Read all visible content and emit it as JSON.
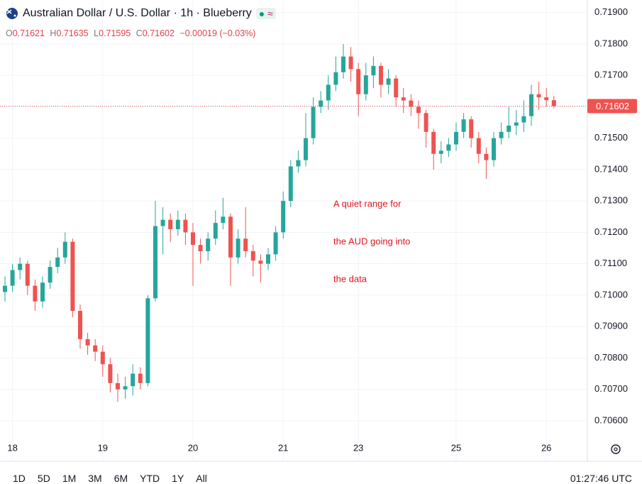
{
  "header": {
    "title": "Australian Dollar / U.S. Dollar · 1h · Blueberry",
    "ohlc_labels": [
      "O",
      "H",
      "L",
      "C"
    ],
    "change": "−0.00019 (−0.03%)"
  },
  "chart_data": {
    "type": "candlestick",
    "categories": [
      null,
      "18",
      null,
      null,
      null,
      null,
      null,
      null,
      null,
      null,
      null,
      null,
      null,
      "19",
      null,
      null,
      null,
      null,
      null,
      null,
      null,
      null,
      null,
      null,
      null,
      "20",
      null,
      null,
      null,
      null,
      null,
      null,
      null,
      null,
      null,
      null,
      null,
      "21",
      null,
      null,
      null,
      null,
      null,
      null,
      null,
      null,
      null,
      "23",
      null,
      null,
      null,
      null,
      null,
      null,
      null,
      null,
      null,
      null,
      null,
      null,
      "25",
      null,
      null,
      null,
      null,
      null,
      null,
      null,
      null,
      null,
      null,
      null,
      "26",
      null
    ],
    "open": [
      0.7101,
      0.7103,
      0.7108,
      0.711,
      0.7103,
      0.7098,
      0.7104,
      0.7109,
      0.7112,
      0.7117,
      0.7095,
      0.7086,
      0.7084,
      0.7082,
      0.7078,
      0.7072,
      0.707,
      0.7071,
      0.7075,
      0.7072,
      0.7099,
      0.7122,
      0.7124,
      0.7121,
      0.7124,
      0.712,
      0.7116,
      0.7114,
      0.7118,
      0.7123,
      0.7125,
      0.7112,
      0.7118,
      0.7114,
      0.7111,
      0.711,
      0.7113,
      0.712,
      0.713,
      0.7141,
      0.7143,
      0.715,
      0.716,
      0.7162,
      0.7167,
      0.7171,
      0.7176,
      0.7172,
      0.7164,
      0.717,
      0.7173,
      0.7167,
      0.7169,
      0.7163,
      0.7162,
      0.716,
      0.7158,
      0.7152,
      0.7145,
      0.7146,
      0.7148,
      0.7152,
      0.7156,
      0.715,
      0.7145,
      0.7143,
      0.715,
      0.7152,
      0.7154,
      0.7155,
      0.7157,
      0.7164,
      0.7163,
      0.71621
    ],
    "high": [
      0.7106,
      0.711,
      0.7112,
      0.7111,
      0.7105,
      0.7106,
      0.7111,
      0.7115,
      0.712,
      0.7118,
      0.7097,
      0.7088,
      0.7086,
      0.7084,
      0.708,
      0.7075,
      0.7074,
      0.7078,
      0.7077,
      0.71,
      0.713,
      0.7128,
      0.7126,
      0.7127,
      0.7126,
      0.7123,
      0.7118,
      0.712,
      0.7127,
      0.7131,
      0.7126,
      0.7121,
      0.7128,
      0.7116,
      0.7113,
      0.7115,
      0.7122,
      0.7133,
      0.7143,
      0.7146,
      0.7158,
      0.7163,
      0.7165,
      0.717,
      0.7176,
      0.718,
      0.7179,
      0.7174,
      0.7174,
      0.7176,
      0.7174,
      0.7172,
      0.717,
      0.7166,
      0.7164,
      0.7162,
      0.7159,
      0.7153,
      0.7149,
      0.715,
      0.7155,
      0.7158,
      0.7157,
      0.7152,
      0.7147,
      0.7152,
      0.7155,
      0.716,
      0.7159,
      0.7162,
      0.7167,
      0.7168,
      0.7166,
      0.71635
    ],
    "low": [
      0.7098,
      0.7101,
      0.7105,
      0.71,
      0.7095,
      0.7096,
      0.7102,
      0.7107,
      0.711,
      0.7093,
      0.7083,
      0.7081,
      0.7079,
      0.7074,
      0.7069,
      0.7066,
      0.7067,
      0.7068,
      0.707,
      0.7071,
      0.7098,
      0.7113,
      0.7117,
      0.7119,
      0.7116,
      0.7103,
      0.711,
      0.7111,
      0.7116,
      0.7121,
      0.7103,
      0.711,
      0.7112,
      0.7106,
      0.7104,
      0.7108,
      0.7111,
      0.7118,
      0.7128,
      0.7139,
      0.7141,
      0.7148,
      0.7158,
      0.7159,
      0.7165,
      0.7169,
      0.7168,
      0.7157,
      0.7162,
      0.7166,
      0.7163,
      0.7164,
      0.716,
      0.7158,
      0.7157,
      0.7153,
      0.7147,
      0.714,
      0.7142,
      0.7144,
      0.7146,
      0.715,
      0.7147,
      0.7142,
      0.7137,
      0.7141,
      0.7148,
      0.715,
      0.7151,
      0.7152,
      0.7154,
      0.7159,
      0.716,
      0.71595
    ],
    "close": [
      0.7103,
      0.7108,
      0.711,
      0.7103,
      0.7098,
      0.7104,
      0.7109,
      0.7112,
      0.7117,
      0.7095,
      0.7086,
      0.7084,
      0.7082,
      0.7078,
      0.7072,
      0.707,
      0.7071,
      0.7075,
      0.7072,
      0.7099,
      0.7122,
      0.7124,
      0.7121,
      0.7124,
      0.712,
      0.7116,
      0.7114,
      0.7118,
      0.7123,
      0.7125,
      0.7112,
      0.7118,
      0.7114,
      0.7111,
      0.711,
      0.7113,
      0.712,
      0.713,
      0.7141,
      0.7143,
      0.715,
      0.716,
      0.7162,
      0.7167,
      0.7171,
      0.7176,
      0.7172,
      0.7164,
      0.717,
      0.7173,
      0.7167,
      0.7169,
      0.7163,
      0.7162,
      0.716,
      0.7158,
      0.7152,
      0.7145,
      0.7146,
      0.7148,
      0.7152,
      0.7156,
      0.715,
      0.7145,
      0.7143,
      0.715,
      0.7152,
      0.7154,
      0.7155,
      0.7157,
      0.7164,
      0.7163,
      0.71621,
      0.71602
    ],
    "up_color": "#26a69a",
    "down_color": "#ef5350",
    "ylim": [
      0.7055,
      0.7194
    ],
    "yticks": [
      {
        "value": 0.719,
        "label": "0.71900"
      },
      {
        "value": 0.718,
        "label": "0.71800"
      },
      {
        "value": 0.717,
        "label": "0.71700"
      },
      {
        "value": 0.716,
        "label": "0.71600"
      },
      {
        "value": 0.715,
        "label": "0.71500"
      },
      {
        "value": 0.714,
        "label": "0.71400"
      },
      {
        "value": 0.713,
        "label": "0.71300"
      },
      {
        "value": 0.712,
        "label": "0.71200"
      },
      {
        "value": 0.711,
        "label": "0.71100"
      },
      {
        "value": 0.71,
        "label": "0.71000"
      },
      {
        "value": 0.709,
        "label": "0.70900"
      },
      {
        "value": 0.708,
        "label": "0.70800"
      },
      {
        "value": 0.707,
        "label": "0.70700"
      },
      {
        "value": 0.706,
        "label": "0.70600"
      }
    ],
    "grid": true,
    "last_price_line": true,
    "annotation": [
      "A quiet range for",
      "the AUD going into",
      "the data"
    ],
    "annotation_color": "#e3141b"
  },
  "toolbar": {
    "ranges": [
      "1D",
      "5D",
      "1M",
      "3M",
      "6M",
      "YTD",
      "1Y",
      "All"
    ],
    "clock": "01:27:46 UTC"
  }
}
